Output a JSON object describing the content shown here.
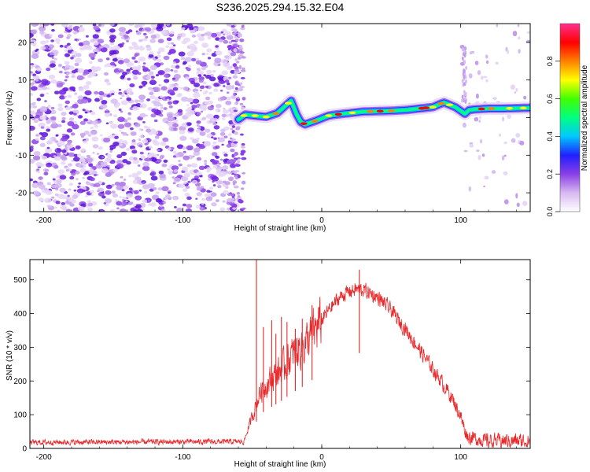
{
  "title": "S236.2025.294.15.32.E04",
  "colors": {
    "frame": "#000000",
    "snr_line": "#e8282a",
    "speckle": "#8a3ee8",
    "background": "#ffffff"
  },
  "chart_data": [
    {
      "type": "heatmap",
      "name": "spectrogram",
      "xlabel": "Height of straight line (km)",
      "ylabel": "Frequency (Hz)",
      "xlim": [
        -210,
        150
      ],
      "ylim": [
        -25,
        25
      ],
      "xticks": [
        -200,
        -100,
        0,
        100
      ],
      "xtick_labels": [
        "-200",
        "-100",
        "0",
        "100"
      ],
      "yticks": [
        20,
        10,
        0,
        -10,
        -20
      ],
      "ytick_labels": [
        "20",
        "10",
        "0",
        "-10",
        "-20"
      ],
      "colorbar": {
        "label": "Normalized spectral amplitude",
        "range": [
          0,
          1
        ],
        "ticks": [
          0.0,
          0.2,
          0.4,
          0.6,
          0.8
        ],
        "tick_labels": [
          "0.0",
          "0.2",
          "0.4",
          "0.6",
          "0.8"
        ],
        "palette": [
          "#ffffff",
          "#d8b8f0",
          "#8a3ee8",
          "#2020ff",
          "#00c8ff",
          "#00ff80",
          "#40ff00",
          "#ffff00",
          "#ff8000",
          "#ff0000",
          "#ff3090"
        ]
      },
      "noise_region_km": [
        -210,
        -60
      ],
      "sparse_noise_region_km": [
        100,
        150
      ],
      "frequency_track": {
        "km": [
          -62,
          -55,
          -48,
          -40,
          -32,
          -25,
          -22,
          -18,
          -15,
          -12,
          -8,
          -4,
          0,
          5,
          10,
          15,
          20,
          30,
          40,
          50,
          60,
          70,
          75,
          80,
          85,
          88,
          92,
          96,
          100,
          103,
          106,
          110,
          120,
          130,
          140,
          150
        ],
        "hz": [
          -1,
          0.8,
          0.5,
          0.2,
          1.2,
          3.5,
          4.5,
          0.8,
          -1.2,
          -1.8,
          -1.3,
          -0.8,
          -0.2,
          0.5,
          0.8,
          1.0,
          1.2,
          1.6,
          1.7,
          1.8,
          2.0,
          2.4,
          2.6,
          2.8,
          3.6,
          4.0,
          3.4,
          2.8,
          1.8,
          1.0,
          2.0,
          2.2,
          2.4,
          2.4,
          2.5,
          2.6
        ]
      }
    },
    {
      "type": "line",
      "name": "snr",
      "xlabel": "Height of straight line (km)",
      "ylabel": "SNR (10 * v/v)",
      "xlim": [
        -210,
        150
      ],
      "ylim": [
        0,
        560
      ],
      "xticks": [
        -200,
        -100,
        0,
        100
      ],
      "xtick_labels": [
        "-200",
        "-100",
        "0",
        "100"
      ],
      "yticks": [
        0,
        100,
        200,
        300,
        400,
        500
      ],
      "ytick_labels": [
        "0",
        "100",
        "200",
        "300",
        "400",
        "500"
      ],
      "series": [
        {
          "name": "SNR",
          "envelope_x": [
            -210,
            -56,
            -52,
            -48,
            -44,
            -40,
            -35,
            -30,
            -25,
            -20,
            -15,
            -10,
            -5,
            0,
            5,
            10,
            15,
            20,
            25,
            30,
            35,
            40,
            45,
            50,
            55,
            60,
            65,
            70,
            75,
            80,
            85,
            90,
            95,
            100,
            103,
            105,
            110,
            115,
            120,
            130,
            140,
            150
          ],
          "envelope_y": [
            18,
            20,
            70,
            120,
            170,
            190,
            210,
            230,
            255,
            280,
            300,
            320,
            350,
            380,
            410,
            435,
            455,
            465,
            472,
            470,
            460,
            448,
            430,
            410,
            380,
            355,
            325,
            295,
            265,
            235,
            205,
            175,
            140,
            95,
            55,
            35,
            30,
            25,
            22,
            22,
            22,
            22
          ],
          "spikes": [
            {
              "km": -47,
              "snr": 565
            },
            {
              "km": -42,
              "snr": 360
            },
            {
              "km": -36,
              "snr": 380
            },
            {
              "km": -33,
              "snr": 340
            },
            {
              "km": -29,
              "snr": 390
            },
            {
              "km": -25,
              "snr": 375
            },
            {
              "km": -19,
              "snr": 355
            },
            {
              "km": -14,
              "snr": 385
            },
            {
              "km": -7,
              "snr": 425
            },
            {
              "km": 27,
              "snr": 530
            }
          ]
        }
      ]
    }
  ]
}
